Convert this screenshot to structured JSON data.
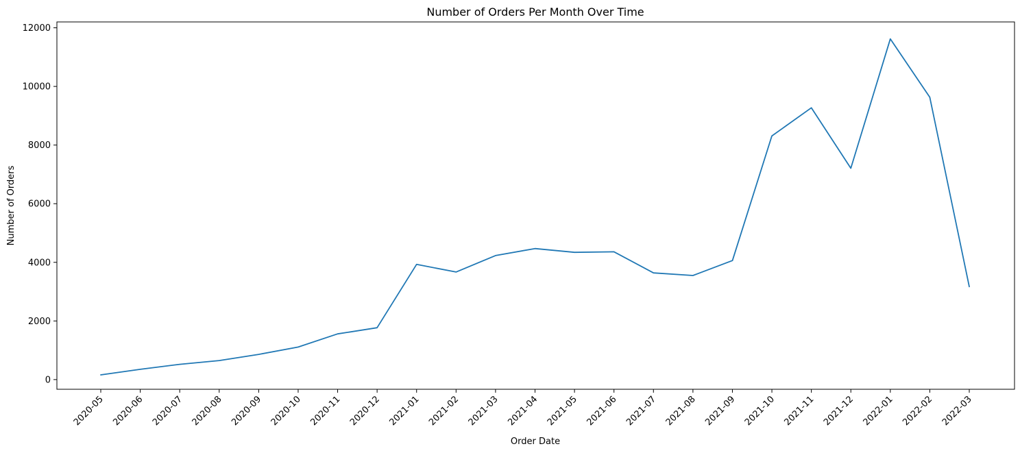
{
  "chart_data": {
    "type": "line",
    "title": "Number of Orders Per Month Over Time",
    "xlabel": "Order Date",
    "ylabel": "Number of Orders",
    "x": [
      "2020-05",
      "2020-06",
      "2020-07",
      "2020-08",
      "2020-09",
      "2020-10",
      "2020-11",
      "2020-12",
      "2021-01",
      "2021-02",
      "2021-03",
      "2021-04",
      "2021-05",
      "2021-06",
      "2021-07",
      "2021-08",
      "2021-09",
      "2021-10",
      "2021-11",
      "2021-12",
      "2022-01",
      "2022-02",
      "2022-03"
    ],
    "series": [
      {
        "values": [
          160,
          350,
          520,
          650,
          860,
          1110,
          1560,
          1770,
          3930,
          3670,
          4230,
          4470,
          4340,
          4360,
          3640,
          3550,
          4060,
          8310,
          9270,
          7210,
          11620,
          9630,
          3170
        ]
      }
    ],
    "ylim": [
      -330,
      12200
    ],
    "yticks": [
      0,
      2000,
      4000,
      6000,
      8000,
      10000,
      12000
    ],
    "grid": false,
    "line_color": "#1f77b4"
  }
}
